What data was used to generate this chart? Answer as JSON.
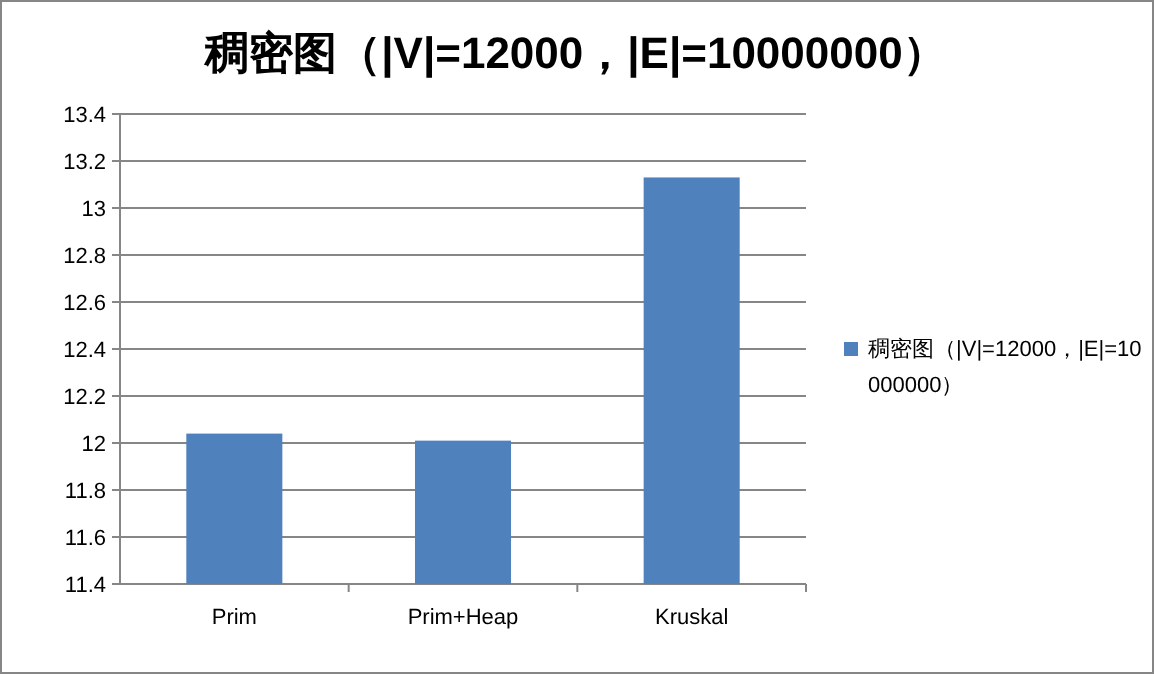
{
  "chart_data": {
    "type": "bar",
    "title": "稠密图（|V|=12000，|E|=10000000）",
    "categories": [
      "Prim",
      "Prim+Heap",
      "Kruskal"
    ],
    "series": [
      {
        "name": "稠密图（|V|=12000，|E|=10000000）",
        "color": "#4f81bd",
        "values": [
          12.04,
          12.01,
          13.13
        ]
      }
    ],
    "ylim": [
      11.4,
      13.4
    ],
    "yticks": [
      11.4,
      11.6,
      11.8,
      12,
      12.2,
      12.4,
      12.6,
      12.8,
      13,
      13.2,
      13.4
    ],
    "grid": "y",
    "legend": "right"
  }
}
